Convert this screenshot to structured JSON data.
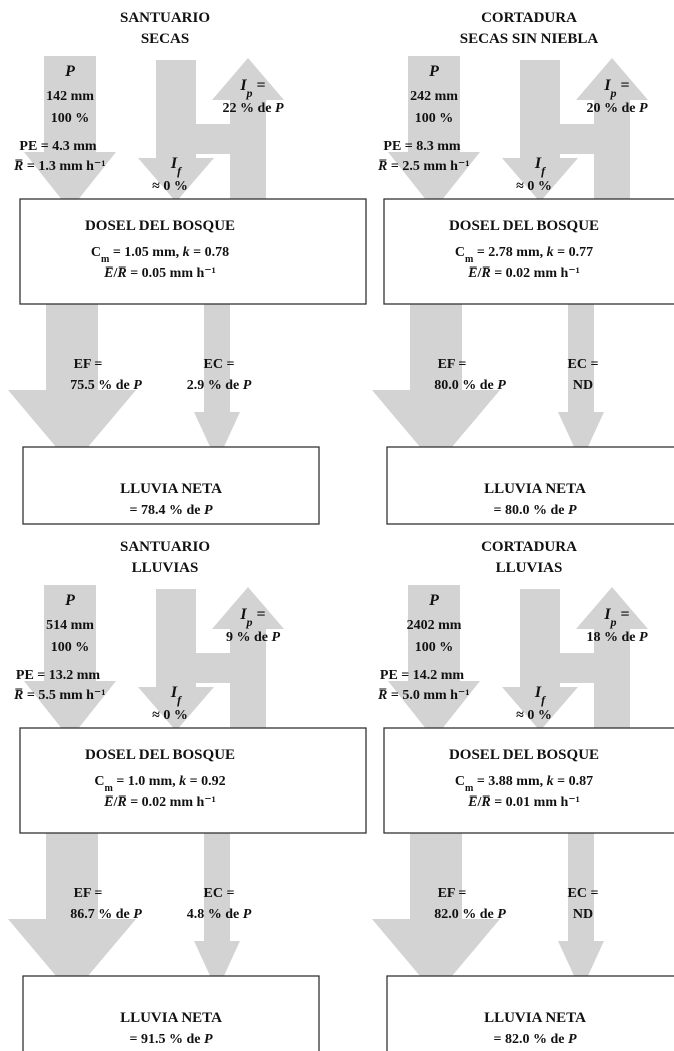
{
  "colors": {
    "arrow_fill": "#d3d3d3",
    "box_stroke": "#333333",
    "text": "#111111"
  },
  "panels": [
    {
      "title_1": "SANTUARIO",
      "title_2": "SECAS",
      "P_symbol": "P",
      "P_mm": "142 mm",
      "P_pct": "100 %",
      "PE": "PE = 4.3 mm",
      "R_symbol": "R̅",
      "R": " = 1.3 mm h⁻¹",
      "If_symbol": "I",
      "If_sub": "f",
      "If_value": "≈ 0 %",
      "Ip_symbol": "I",
      "Ip_sub": "p",
      "Ip_eq": " =",
      "Ip_value": "22 % de ",
      "Ip_P": "P",
      "dosel": "DOSEL DEL BOSQUE",
      "cm_sym": "C",
      "cm_sub": "m",
      "cm_value": " = 1.05 mm, ",
      "k_sym": "k",
      "k_value": " = 0.78",
      "er_E": "E̅",
      "er_slash": "/",
      "er_R": "R̅",
      "er_value": " = 0.05 mm h⁻¹",
      "EF_label": "EF =",
      "EF_value": "75.5 % de ",
      "EF_P": "P",
      "EC_label": "EC =",
      "EC_value": "2.9 % de ",
      "EC_P": "P",
      "lluvia": "LLUVIA NETA",
      "lluvia_value": "= 78.4 % de ",
      "lluvia_P": "P"
    },
    {
      "title_1": "CORTADURA",
      "title_2": "SECAS SIN NIEBLA",
      "P_symbol": "P",
      "P_mm": "242 mm",
      "P_pct": "100 %",
      "PE": "PE = 8.3 mm",
      "R_symbol": "R̅",
      "R": " = 2.5 mm h⁻¹",
      "If_symbol": "I",
      "If_sub": "f",
      "If_value": "≈ 0 %",
      "Ip_symbol": "I",
      "Ip_sub": "p",
      "Ip_eq": " =",
      "Ip_value": "20 % de ",
      "Ip_P": "P",
      "dosel": "DOSEL DEL BOSQUE",
      "cm_sym": "C",
      "cm_sub": "m",
      "cm_value": " = 2.78 mm, ",
      "k_sym": "k",
      "k_value": " = 0.77",
      "er_E": "E̅",
      "er_slash": "/",
      "er_R": "R̅",
      "er_value": " = 0.02 mm h⁻¹",
      "EF_label": "EF =",
      "EF_value": "80.0 % de ",
      "EF_P": "P",
      "EC_label": "EC =",
      "EC_value": "ND",
      "EC_P": "",
      "lluvia": "LLUVIA NETA",
      "lluvia_value": "= 80.0 % de ",
      "lluvia_P": "P"
    },
    {
      "title_1": "SANTUARIO",
      "title_2": "LLUVIAS",
      "P_symbol": "P",
      "P_mm": "514 mm",
      "P_pct": "100 %",
      "PE": "PE = 13.2 mm",
      "R_symbol": "R̅",
      "R": " = 5.5 mm h⁻¹",
      "If_symbol": "I",
      "If_sub": "f",
      "If_value": "≈ 0 %",
      "Ip_symbol": "I",
      "Ip_sub": "p",
      "Ip_eq": " =",
      "Ip_value": "9 % de ",
      "Ip_P": "P",
      "dosel": "DOSEL DEL BOSQUE",
      "cm_sym": "C",
      "cm_sub": "m",
      "cm_value": " = 1.0 mm, ",
      "k_sym": "k",
      "k_value": " = 0.92",
      "er_E": "E̅",
      "er_slash": "/",
      "er_R": "R̅",
      "er_value": " = 0.02 mm h⁻¹",
      "EF_label": "EF =",
      "EF_value": "86.7 % de ",
      "EF_P": "P",
      "EC_label": "EC =",
      "EC_value": "4.8 % de ",
      "EC_P": "P",
      "lluvia": "LLUVIA NETA",
      "lluvia_value": "= 91.5 % de ",
      "lluvia_P": "P"
    },
    {
      "title_1": "CORTADURA",
      "title_2": "LLUVIAS",
      "P_symbol": "P",
      "P_mm": "2402 mm",
      "P_pct": "100 %",
      "PE": "PE = 14.2 mm",
      "R_symbol": "R̅",
      "R": " = 5.0 mm h⁻¹",
      "If_symbol": "I",
      "If_sub": "f",
      "If_value": "≈ 0 %",
      "Ip_symbol": "I",
      "Ip_sub": "p",
      "Ip_eq": " =",
      "Ip_value": "18 % de ",
      "Ip_P": "P",
      "dosel": "DOSEL DEL BOSQUE",
      "cm_sym": "C",
      "cm_sub": "m",
      "cm_value": " = 3.88 mm, ",
      "k_sym": "k",
      "k_value": " = 0.87",
      "er_E": "E̅",
      "er_slash": "/",
      "er_R": "R̅",
      "er_value": " = 0.01 mm h⁻¹",
      "EF_label": "EF =",
      "EF_value": "82.0 % de ",
      "EF_P": "P",
      "EC_label": "EC =",
      "EC_value": "ND",
      "EC_P": "",
      "lluvia": "LLUVIA NETA",
      "lluvia_value": "= 82.0 % de ",
      "lluvia_P": "P"
    }
  ]
}
